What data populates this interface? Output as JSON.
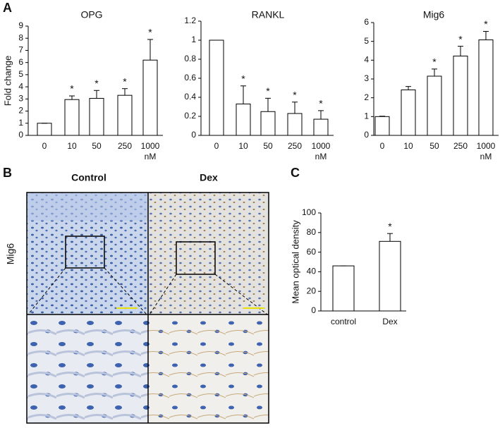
{
  "panel_labels": [
    "A",
    "B",
    "C"
  ],
  "images": {
    "row_label": "Mig6",
    "columns": [
      "Control",
      "Dex"
    ]
  },
  "chart_data": [
    {
      "type": "bar",
      "title": "OPG",
      "ylabel": "Fold change",
      "categories": [
        "0",
        "10",
        "50",
        "250",
        "1000"
      ],
      "x_unit": "nM",
      "values": [
        1,
        2.95,
        3.05,
        3.3,
        6.2
      ],
      "errors": [
        0,
        0.3,
        0.65,
        0.55,
        1.7
      ],
      "significance": [
        null,
        "*",
        "*",
        "*",
        "*"
      ],
      "ylim": [
        0,
        9
      ],
      "yticks": [
        0,
        1,
        2,
        3,
        4,
        5,
        6,
        7,
        8,
        9
      ],
      "color": "#ffffff"
    },
    {
      "type": "bar",
      "title": "RANKL",
      "categories": [
        "0",
        "10",
        "50",
        "250",
        "1000"
      ],
      "x_unit": "nM",
      "values": [
        1,
        0.33,
        0.25,
        0.23,
        0.17
      ],
      "errors": [
        0,
        0.19,
        0.14,
        0.12,
        0.09
      ],
      "significance": [
        null,
        "*",
        "*",
        "*",
        "*"
      ],
      "ylim": [
        0,
        1.2
      ],
      "yticks": [
        0,
        0.2,
        0.4,
        0.6,
        0.8,
        1,
        1.2
      ],
      "color": "#ffffff"
    },
    {
      "type": "bar",
      "title": "Mig6",
      "categories": [
        "0",
        "10",
        "50",
        "250",
        "1000"
      ],
      "x_unit": "nM",
      "values": [
        1,
        2.42,
        3.15,
        4.22,
        5.08
      ],
      "errors": [
        0.02,
        0.18,
        0.38,
        0.52,
        0.45
      ],
      "significance": [
        null,
        null,
        "*",
        "*",
        "*"
      ],
      "ylim": [
        0,
        6
      ],
      "yticks": [
        0,
        1,
        2,
        3,
        4,
        5,
        6
      ],
      "color": "#ffffff"
    },
    {
      "type": "bar",
      "ylabel": "Mean optical density",
      "categories": [
        "control",
        "Dex"
      ],
      "values": [
        46,
        71
      ],
      "errors": [
        0,
        8
      ],
      "significance": [
        null,
        "*"
      ],
      "ylim": [
        0,
        100
      ],
      "yticks": [
        0,
        20,
        40,
        60,
        80,
        100
      ],
      "color": "#ffffff"
    }
  ]
}
